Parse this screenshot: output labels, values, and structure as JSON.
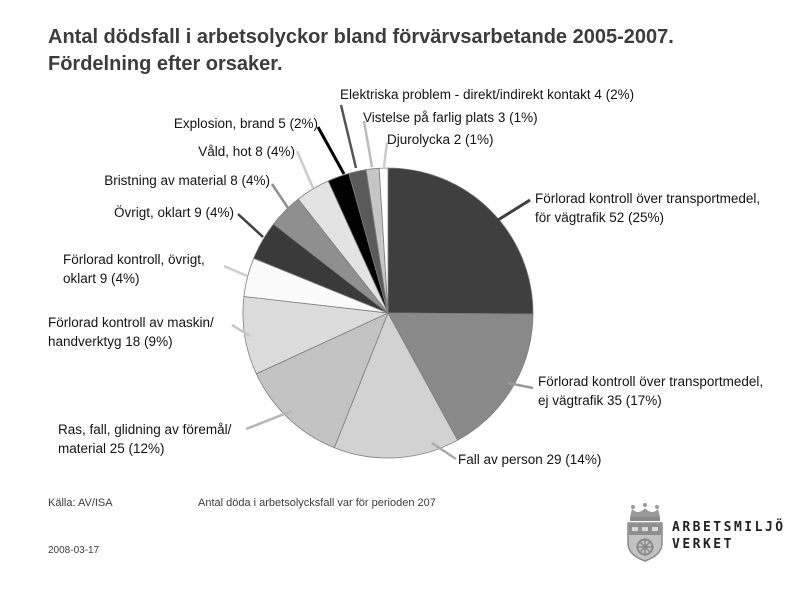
{
  "title": {
    "line1": "Antal dödsfall i arbetsolyckor bland förvärvsarbetande 2005-2007.",
    "line2": "Fördelning efter orsaker."
  },
  "footer": {
    "source": "Källa: AV/ISA",
    "note": "Antal döda i arbetsolycksfall var för perioden 207",
    "date": "2008-03-17"
  },
  "logo": {
    "text": "ARBETSMILJÖ\nVERKET",
    "icon": "swedish-crown-shield-crest"
  },
  "chart_data": {
    "type": "pie",
    "title": "Antal dödsfall i arbetsolyckor bland förvärvsarbetande 2005-2007. Fördelning efter orsaker.",
    "total": 207,
    "start_angle_deg": 0,
    "direction": "clockwise",
    "legend_position": "callout-labels",
    "slices": [
      {
        "name": "Förlorad kontroll över transportmedel, för vägtrafik",
        "value": 52,
        "pct": 25,
        "color": "#3f3f3f",
        "label": "Förlorad kontroll över transportmedel,\nför vägtrafik 52 (25%)"
      },
      {
        "name": "Förlorad kontroll över transportmedel, ej vägtrafik",
        "value": 35,
        "pct": 17,
        "color": "#898989",
        "label": "Förlorad kontroll över transportmedel,\nej vägtrafik 35 (17%)"
      },
      {
        "name": "Fall av person",
        "value": 29,
        "pct": 14,
        "color": "#d2d2d2",
        "label": "Fall av person 29 (14%)"
      },
      {
        "name": "Ras, fall, glidning av föremål/material",
        "value": 25,
        "pct": 12,
        "color": "#c3c3c3",
        "label": "Ras, fall, glidning av föremål/\nmaterial 25 (12%)"
      },
      {
        "name": "Förlorad kontroll av maskin/handverktyg",
        "value": 18,
        "pct": 9,
        "color": "#dcdcdc",
        "label": "Förlorad kontroll av maskin/\nhandverktyg 18 (9%)"
      },
      {
        "name": "Förlorad kontroll, övrigt, oklart",
        "value": 9,
        "pct": 4,
        "color": "#fbfbfb",
        "label": "Förlorad kontroll, övrigt,\noklart 9 (4%)"
      },
      {
        "name": "Övrigt, oklart",
        "value": 9,
        "pct": 4,
        "color": "#3a3a3a",
        "label": "Övrigt, oklart 9 (4%)"
      },
      {
        "name": "Bristning av material",
        "value": 8,
        "pct": 4,
        "color": "#8f8f8f",
        "label": "Bristning av material 8 (4%)"
      },
      {
        "name": "Våld, hot",
        "value": 8,
        "pct": 4,
        "color": "#e3e3e3",
        "label": "Våld, hot 8 (4%)"
      },
      {
        "name": "Explosion, brand",
        "value": 5,
        "pct": 2,
        "color": "#000000",
        "label": "Explosion, brand 5 (2%)"
      },
      {
        "name": "Elektriska problem - direkt/indirekt kontakt",
        "value": 4,
        "pct": 2,
        "color": "#5a5a5a",
        "label": "Elektriska problem - direkt/indirekt kontakt 4 (2%)"
      },
      {
        "name": "Vistelse på farlig plats",
        "value": 3,
        "pct": 1,
        "color": "#c6c6c6",
        "label": "Vistelse på farlig plats 3 (1%)"
      },
      {
        "name": "Djurolycka",
        "value": 2,
        "pct": 1,
        "color": "#ffffff",
        "label": "Djurolycka 2 (1%)"
      }
    ]
  }
}
